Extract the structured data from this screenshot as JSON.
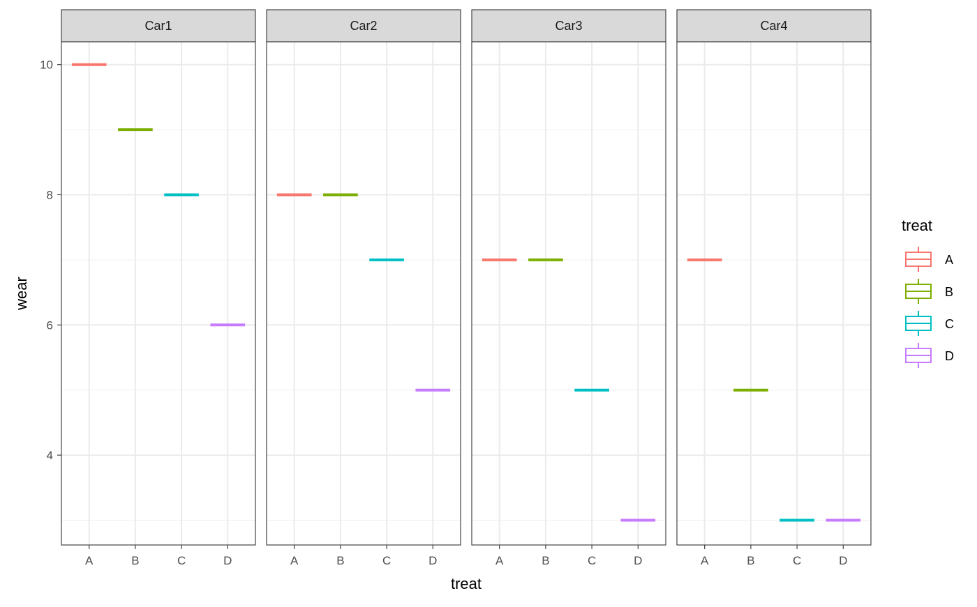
{
  "chart_data": {
    "type": "boxplot",
    "facet_variable": "Car",
    "facets": [
      "Car1",
      "Car2",
      "Car3",
      "Car4"
    ],
    "categories": [
      "A",
      "B",
      "C",
      "D"
    ],
    "xlabel": "treat",
    "ylabel": "wear",
    "ylim": [
      2.62,
      10.35
    ],
    "y_ticks": [
      4,
      6,
      8,
      10
    ],
    "grid": true,
    "legend": {
      "title": "treat",
      "position": "right",
      "entries": [
        "A",
        "B",
        "C",
        "D"
      ]
    },
    "colors": {
      "A": "#F8766D",
      "B": "#7CAE00",
      "C": "#00BFC4",
      "D": "#C77CFF"
    },
    "values": {
      "Car1": [
        10,
        9,
        8,
        6
      ],
      "Car2": [
        8,
        8,
        7,
        5
      ],
      "Car3": [
        7,
        7,
        5,
        3
      ],
      "Car4": [
        7,
        5,
        3,
        3
      ]
    }
  }
}
